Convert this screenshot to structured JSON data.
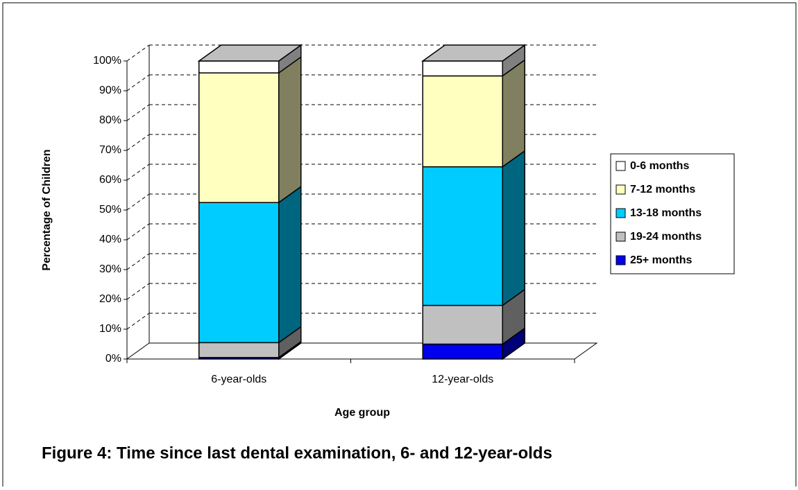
{
  "chart_data": {
    "type": "bar3d-stacked",
    "caption": "Figure 4: Time since last dental examination, 6- and 12-year-olds",
    "y_label": "Percentage of Children",
    "x_label": "Age group",
    "categories": [
      "6-year-olds",
      "12-year-olds"
    ],
    "series": [
      {
        "name": "0-6 months",
        "color": "#ffffff",
        "values": [
          4,
          5
        ]
      },
      {
        "name": "7-12 months",
        "color": "#ffffc0",
        "values": [
          43.5,
          30.5
        ]
      },
      {
        "name": "13-18 months",
        "color": "#00ccff",
        "values": [
          47,
          46.5
        ]
      },
      {
        "name": "19-24 months",
        "color": "#c0c0c0",
        "values": [
          5,
          13
        ]
      },
      {
        "name": "25+ months",
        "color": "#0000ee",
        "values": [
          0.5,
          5
        ]
      }
    ],
    "ylim": [
      0,
      100
    ],
    "yticks": [
      {
        "value": 0,
        "label": "0%"
      },
      {
        "value": 10,
        "label": "10%"
      },
      {
        "value": 20,
        "label": "20%"
      },
      {
        "value": 30,
        "label": "30%"
      },
      {
        "value": 40,
        "label": "40%"
      },
      {
        "value": 50,
        "label": "50%"
      },
      {
        "value": 60,
        "label": "60%"
      },
      {
        "value": 70,
        "label": "70%"
      },
      {
        "value": 80,
        "label": "80%"
      },
      {
        "value": 90,
        "label": "90%"
      },
      {
        "value": 100,
        "label": "100%"
      }
    ],
    "grid": true,
    "legend": "right"
  }
}
